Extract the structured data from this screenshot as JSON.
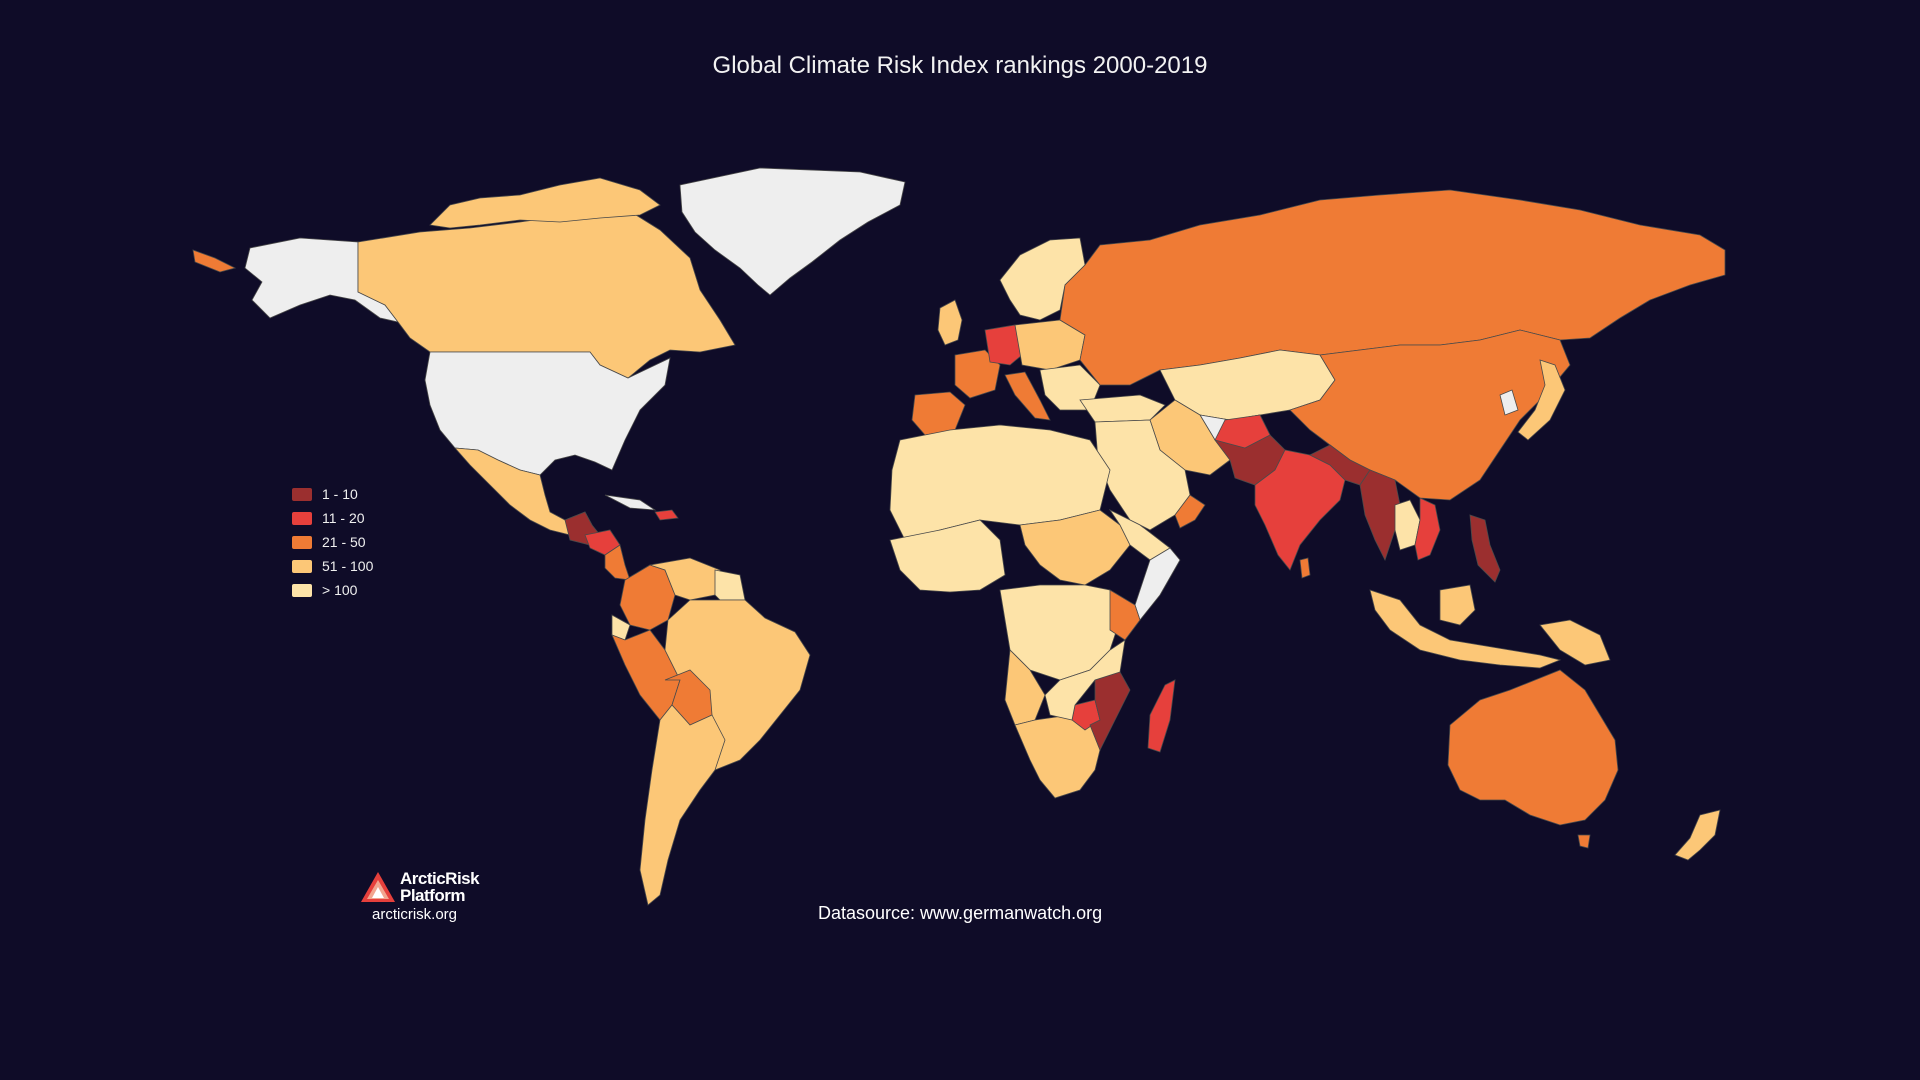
{
  "title": "Global Climate Risk Index rankings 2000-2019",
  "legend": [
    {
      "label": "1 - 10",
      "color": "#9b2f2f"
    },
    {
      "label": "11 - 20",
      "color": "#e6403c"
    },
    {
      "label": "21 - 50",
      "color": "#ef7b35"
    },
    {
      "label": "51 - 100",
      "color": "#fcc777"
    },
    {
      "label": "> 100",
      "color": "#fde3a8"
    }
  ],
  "no_data_color": "#eeeeee",
  "logo": {
    "line1": "ArcticRisk",
    "line2": "Platform",
    "url": "arcticrisk.org"
  },
  "datasource": "Datasource: www.germanwatch.org"
}
